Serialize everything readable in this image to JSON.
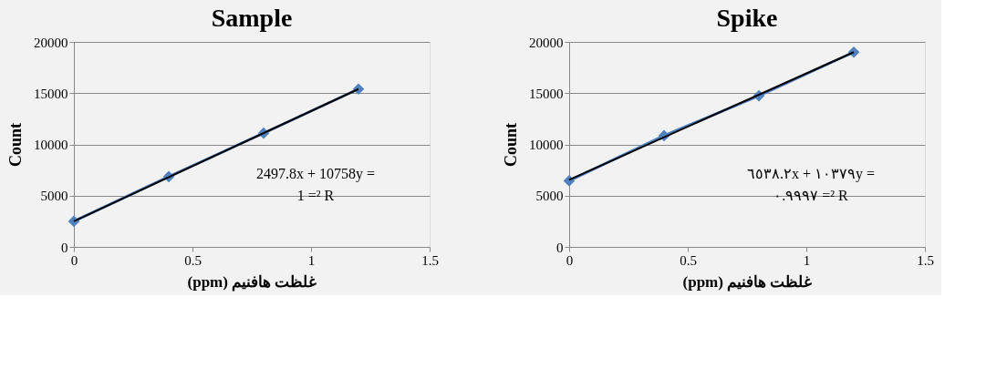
{
  "chart_data": [
    {
      "type": "line",
      "title": "Sample",
      "xlabel": "(ppm) غلظت هافنیم",
      "ylabel": "Count",
      "xlim": [
        0,
        1.5
      ],
      "xticks": [
        0,
        0.5,
        1,
        1.5
      ],
      "ylim": [
        0,
        20000
      ],
      "yticks": [
        0,
        5000,
        10000,
        15000,
        20000
      ],
      "grid": "y",
      "marker": "diamond",
      "series": [
        {
          "color": "#4f81bd",
          "x": [
            0,
            0.4,
            0.8,
            1.2
          ],
          "values": [
            2500,
            6850,
            11100,
            15400
          ]
        },
        {
          "color": "#000000",
          "marker": "none",
          "x": [
            0,
            1.2
          ],
          "values": [
            2500,
            15400
          ]
        }
      ],
      "annotations": [
        "2497.8x + 10758y =\n1 =² R"
      ]
    },
    {
      "type": "line",
      "title": "Spike",
      "xlabel": "(ppm) غلظت هافنیم",
      "ylabel": "Count",
      "xlim": [
        0,
        1.5
      ],
      "xticks": [
        0,
        0.5,
        1,
        1.5
      ],
      "ylim": [
        0,
        20000
      ],
      "yticks": [
        0,
        5000,
        10000,
        15000,
        20000
      ],
      "grid": "y",
      "marker": "diamond",
      "series": [
        {
          "color": "#4f81bd",
          "x": [
            0,
            0.4,
            0.8,
            1.2
          ],
          "values": [
            6450,
            10850,
            14750,
            19000
          ]
        },
        {
          "color": "#000000",
          "marker": "none",
          "x": [
            0,
            1.2
          ],
          "values": [
            6540,
            19000
          ]
        }
      ],
      "annotations": [
        "٦٥٣٨.٢x + ١٠٣٧٩y =\n٠.٩٩٩٧ =² R"
      ]
    }
  ]
}
